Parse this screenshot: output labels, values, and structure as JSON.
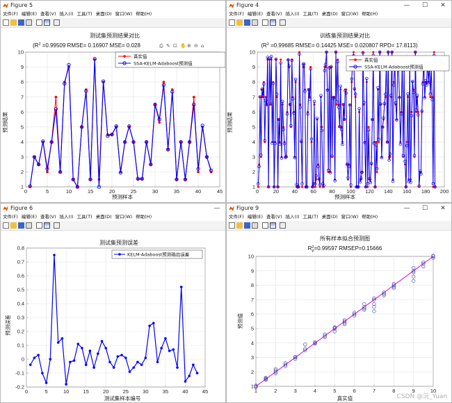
{
  "menu": [
    "文件(F)",
    "编辑(E)",
    "查看(V)",
    "插入(I)",
    "工具(T)",
    "桌面(D)",
    "窗口(W)",
    "帮助(H)"
  ],
  "figures": {
    "f5": {
      "title": "Figure 5",
      "chart": {
        "type": "line",
        "title": "测试集预测结果对比",
        "subtitle": "(R² =0.99509 RMSE= 0.16907 MSE= 0.028",
        "xlabel": "预测样本",
        "ylabel": "预测结果",
        "xlim": [
          0,
          45
        ],
        "ylim": [
          1,
          10
        ],
        "xticks": [
          0,
          5,
          10,
          15,
          20,
          25,
          30,
          35,
          40,
          45
        ],
        "yticks": [
          1,
          2,
          3,
          4,
          5,
          6,
          7,
          8,
          9,
          10
        ],
        "legend_position": "top-right",
        "series": [
          {
            "name": "真实值",
            "color": "#ff0000",
            "values": [
              1,
              3,
              2.5,
              4,
              2,
              4,
              7,
              2,
              8,
              9,
              1.5,
              1,
              5,
              7.5,
              1.5,
              9.5,
              1.5,
              8,
              4.5,
              4.5,
              5,
              2,
              4,
              5,
              4,
              1.5,
              1.5,
              4,
              2.5,
              6.5,
              5.3,
              8,
              3.5,
              7.5,
              1.5,
              4,
              1.5,
              4,
              7,
              2,
              5,
              3,
              2
            ]
          },
          {
            "name": "SSA-KELM-Adaboost预测值",
            "color": "#0000ff",
            "values": [
              1.05,
              3,
              2.5,
              4.05,
              2.2,
              4,
              6.2,
              2,
              7.9,
              9.15,
              1.5,
              1,
              5,
              7.4,
              1.5,
              9.55,
              1,
              8.05,
              4.4,
              4.5,
              5.05,
              1.95,
              4,
              5.05,
              4,
              1.55,
              1.55,
              4,
              2.5,
              6.5,
              5.5,
              7.8,
              3.5,
              7.35,
              1.5,
              4,
              1.5,
              4,
              6.5,
              2.2,
              5.1,
              3,
              2.1
            ]
          }
        ]
      }
    },
    "f4": {
      "title": "Figure 4",
      "chart": {
        "type": "line",
        "title": "训练集预测结果对比",
        "subtitle": "(R² =0.99685 RMSE= 0.14425 MSE= 0.020807 RPD= 17.8113)",
        "xlabel": "预测样本",
        "ylabel": "预测结果",
        "xlim": [
          0,
          200
        ],
        "ylim": [
          1,
          10
        ],
        "xticks": [
          0,
          20,
          40,
          60,
          80,
          100,
          120,
          140,
          160,
          180,
          200
        ],
        "yticks": [
          1,
          2,
          3,
          4,
          5,
          6,
          7,
          8,
          9,
          10
        ],
        "legend_position": "top-right",
        "series": [
          {
            "name": "真实值",
            "color": "#ff0000"
          },
          {
            "name": "SSA-KELM-Adaboost预测值",
            "color": "#0000ff"
          }
        ]
      }
    },
    "f6": {
      "title": "Figure 6",
      "chart": {
        "type": "line",
        "title": "测试集预测误差",
        "xlabel": "测试集样本编号",
        "ylabel": "预测误差",
        "xlim": [
          0,
          45
        ],
        "ylim": [
          -0.2,
          0.8
        ],
        "xticks": [
          0,
          5,
          10,
          15,
          20,
          25,
          30,
          35,
          40,
          45
        ],
        "yticks": [
          -0.2,
          -0.1,
          0,
          0.1,
          0.2,
          0.3,
          0.4,
          0.5,
          0.6,
          0.7,
          0.8
        ],
        "ytick_labels": [
          "-0.2",
          "-0.1",
          "0",
          "0.1",
          "0.2",
          "0.3",
          "0.4",
          "0.5",
          "0.6",
          "0.7",
          "0.8"
        ],
        "legend_position": "top-right",
        "series": [
          {
            "name": "KELM-Adaboost预测输出误差",
            "color": "#0000ff",
            "values": [
              -0.04,
              0.01,
              0.03,
              -0.1,
              -0.17,
              0,
              0.75,
              0.12,
              0.15,
              -0.18,
              -0.02,
              -0.01,
              0.11,
              0.08,
              -0.04,
              0.06,
              -0.06,
              0.04,
              0.13,
              0.08,
              -0.02,
              -0.06,
              0.02,
              0.03,
              0.01,
              -0.09,
              -0.06,
              -0.02,
              -0.04,
              0.01,
              0.24,
              0.26,
              -0.02,
              0.08,
              0.15,
              0.06,
              0.07,
              -0.06,
              0.52,
              -0.16,
              -0.12,
              -0.04,
              -0.1
            ]
          }
        ]
      }
    },
    "f9": {
      "title": "Figure 9",
      "chart": {
        "type": "scatter",
        "title": "所有样本拟合预测图",
        "subtitle": "R²p=0.99597  RMSEP=0.15666",
        "xlabel": "真实值",
        "ylabel": "预测值",
        "xlim": [
          1,
          10
        ],
        "ylim": [
          1,
          10
        ],
        "xticks": [
          1,
          2,
          3,
          4,
          5,
          6,
          7,
          8,
          9,
          10
        ],
        "yticks": [
          1,
          2,
          3,
          4,
          5,
          6,
          7,
          8,
          9,
          10
        ],
        "fit_line_color": "#e000e0",
        "points": [
          [
            1,
            1
          ],
          [
            1,
            1.05
          ],
          [
            1,
            0.95
          ],
          [
            1.5,
            1.5
          ],
          [
            1.5,
            1.45
          ],
          [
            1.5,
            1.55
          ],
          [
            1.5,
            1.6
          ],
          [
            2,
            2
          ],
          [
            2,
            1.9
          ],
          [
            2,
            2.1
          ],
          [
            2,
            2.2
          ],
          [
            2.5,
            2.5
          ],
          [
            2.5,
            2.4
          ],
          [
            2.5,
            2.6
          ],
          [
            3,
            3
          ],
          [
            3,
            3.05
          ],
          [
            3,
            2.9
          ],
          [
            3.5,
            3.5
          ],
          [
            3.5,
            3.9
          ],
          [
            3.5,
            3.6
          ],
          [
            4,
            4
          ],
          [
            4,
            4.05
          ],
          [
            4,
            3.95
          ],
          [
            4.5,
            4.5
          ],
          [
            4.5,
            4.4
          ],
          [
            4.5,
            4.6
          ],
          [
            5,
            5
          ],
          [
            5,
            5.1
          ],
          [
            5,
            5.05
          ],
          [
            5,
            4.8
          ],
          [
            5.5,
            5.5
          ],
          [
            5.5,
            5.4
          ],
          [
            5.5,
            5.6
          ],
          [
            5.5,
            5.3
          ],
          [
            6,
            6
          ],
          [
            6,
            6.1
          ],
          [
            6,
            5.9
          ],
          [
            6.5,
            6.5
          ],
          [
            6.5,
            6.3
          ],
          [
            6.5,
            6.7
          ],
          [
            6.5,
            6.4
          ],
          [
            7,
            7
          ],
          [
            7,
            6.5
          ],
          [
            7,
            6.2
          ],
          [
            7,
            7.1
          ],
          [
            7,
            6.7
          ],
          [
            7.5,
            7.5
          ],
          [
            7.5,
            7.3
          ],
          [
            7.5,
            7.4
          ],
          [
            8,
            8
          ],
          [
            8,
            7.8
          ],
          [
            8,
            7.9
          ],
          [
            8,
            8.1
          ],
          [
            9,
            9
          ],
          [
            9,
            8.9
          ],
          [
            9,
            9.2
          ],
          [
            9,
            8.6
          ],
          [
            9,
            8.3
          ],
          [
            9.5,
            9.5
          ],
          [
            9.5,
            9.6
          ],
          [
            9.5,
            9.3
          ],
          [
            10,
            10
          ],
          [
            10,
            9.9
          ],
          [
            10,
            10.05
          ]
        ]
      }
    }
  },
  "watermark": "CSDN @沅_Yuan",
  "colors": {
    "accent": "#0060c0",
    "true_value": "#ff0000",
    "predicted": "#0000ff"
  }
}
